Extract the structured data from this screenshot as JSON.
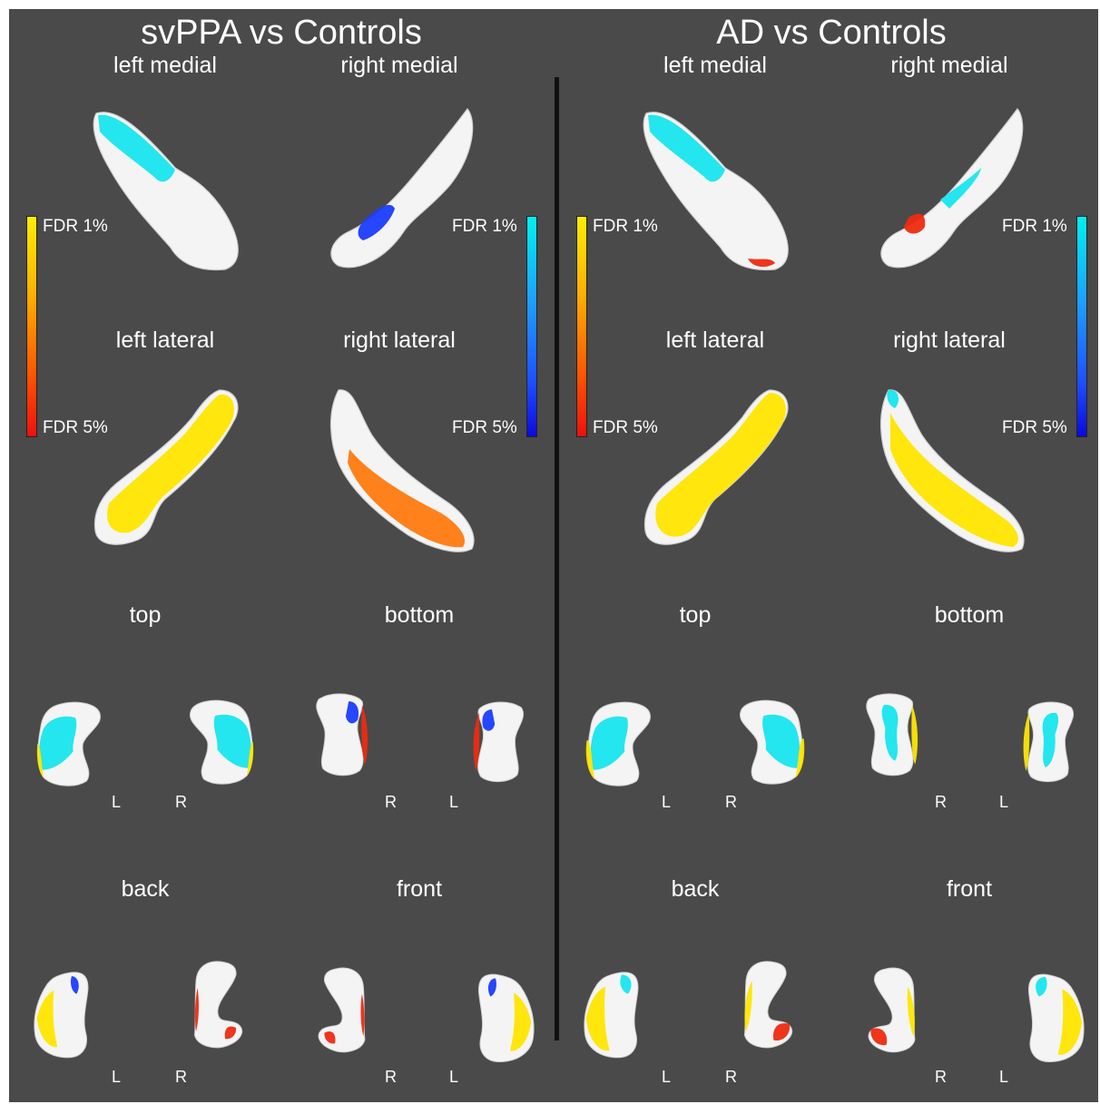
{
  "panels": [
    {
      "title": "svPPA vs Controls",
      "views": {
        "left_medial": "left medial",
        "right_medial": "right medial",
        "left_lateral": "left lateral",
        "right_lateral": "right lateral",
        "top": "top",
        "bottom": "bottom",
        "back": "back",
        "front": "front"
      },
      "side_labels": {
        "l1": "L",
        "r1": "R",
        "r2": "R",
        "l2": "L",
        "l3": "L",
        "r3": "R",
        "r4": "R",
        "l4": "L"
      },
      "colorbar_positive": {
        "top": "FDR 1%",
        "bottom": "FDR 5%"
      },
      "colorbar_negative": {
        "top": "FDR 1%",
        "bottom": "FDR 5%"
      }
    },
    {
      "title": "AD vs Controls",
      "views": {
        "left_medial": "left medial",
        "right_medial": "right medial",
        "left_lateral": "left lateral",
        "right_lateral": "right lateral",
        "top": "top",
        "bottom": "bottom",
        "back": "back",
        "front": "front"
      },
      "side_labels": {
        "l1": "L",
        "r1": "R",
        "r2": "R",
        "l2": "L",
        "l3": "L",
        "r3": "R",
        "r4": "R",
        "l4": "L"
      },
      "colorbar_positive": {
        "top": "FDR 1%",
        "bottom": "FDR 5%"
      },
      "colorbar_negative": {
        "top": "FDR 1%",
        "bottom": "FDR 5%"
      }
    }
  ],
  "colors": {
    "background": "#4a4a4a",
    "divider": "#111111",
    "surface": "#f4f4f4",
    "positive_high": "#ffee00",
    "positive_low": "#ee1010",
    "negative_high": "#00f0f0",
    "negative_low": "#0a0ae0"
  }
}
